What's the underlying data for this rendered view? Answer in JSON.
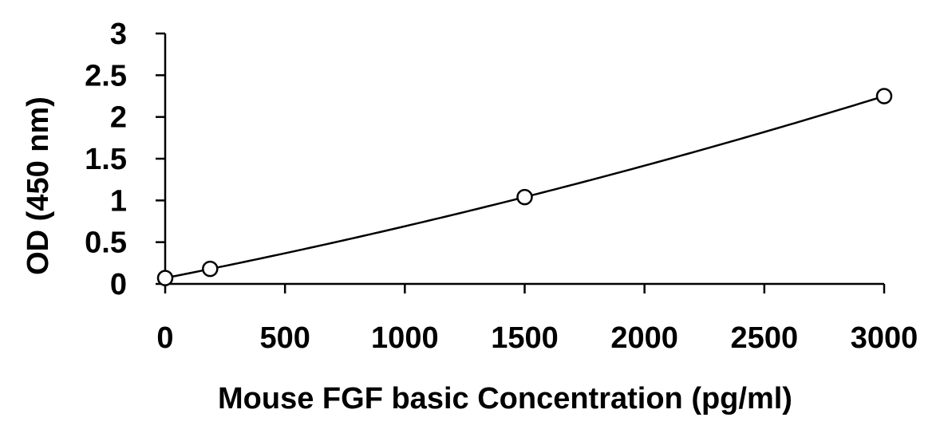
{
  "chart_data": {
    "type": "scatter",
    "title": "",
    "xlabel": "Mouse FGF basic Concentration (pg/ml)",
    "ylabel": "OD (450 nm)",
    "xlim": [
      0,
      3000
    ],
    "ylim": [
      0,
      3
    ],
    "x_ticks": [
      "0",
      "500",
      "1000",
      "1500",
      "2000",
      "2500",
      "3000"
    ],
    "y_ticks": [
      "0",
      "0.5",
      "1",
      "1.5",
      "2",
      "2.5",
      "3"
    ],
    "x_tick_values": [
      0,
      500,
      1000,
      1500,
      2000,
      2500,
      3000
    ],
    "y_tick_values": [
      0,
      0.5,
      1,
      1.5,
      2,
      2.5,
      3
    ],
    "grid": false,
    "legend": "none",
    "series": [
      {
        "marker": "open-circle",
        "trendline": "smooth",
        "x": [
          0,
          187.5,
          1500,
          3000
        ],
        "y": [
          0.07,
          0.18,
          1.04,
          2.25
        ]
      }
    ],
    "colors": {
      "line": "#000000",
      "marker_fill": "#ffffff"
    }
  }
}
